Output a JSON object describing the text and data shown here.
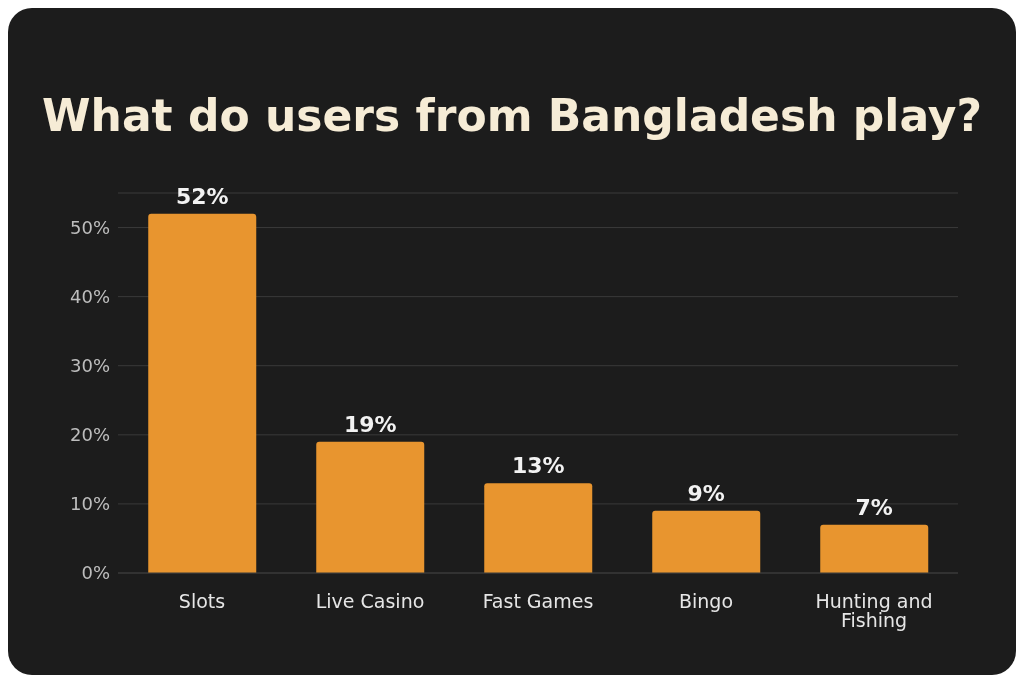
{
  "chart_data": {
    "type": "bar",
    "title": "What do users from Bangladesh play?",
    "categories": [
      "Slots",
      "Live Casino",
      "Fast Games",
      "Bingo",
      "Hunting and Fishing"
    ],
    "values": [
      52,
      19,
      13,
      9,
      7
    ],
    "color": "#e8952f",
    "ylim": [
      0,
      55
    ],
    "yticks": [
      {
        "value": 0,
        "label": "0%"
      },
      {
        "value": 10,
        "label": "10%"
      },
      {
        "value": 20,
        "label": "20%"
      },
      {
        "value": 30,
        "label": "30%"
      },
      {
        "value": 40,
        "label": "40%"
      },
      {
        "value": 50,
        "label": "50%"
      }
    ],
    "grid": "y",
    "value_labels": [
      "52%",
      "19%",
      "13%",
      "9%",
      "7%"
    ]
  }
}
